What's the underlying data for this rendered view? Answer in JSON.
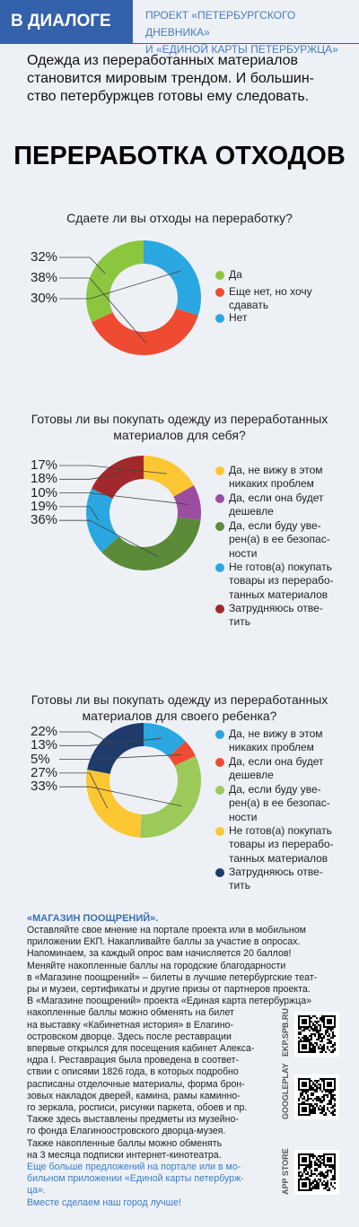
{
  "header": {
    "badge": "В ДИАЛОГЕ",
    "project": "ПРОЕКТ «ПЕТЕРБУРГСКОГО ДНЕВНИКА»\nИ «ЕДИНОЙ КАРТЫ ПЕТЕРБУРЖЦА»"
  },
  "intro": "Одежда из переработанных материалов\nстановится мировым трендом. И большин-\nство петербуржцев готовы ему следовать.",
  "title": "ПЕРЕРАБОТКА ОТХОДОВ",
  "chart_data": [
    {
      "type": "pie",
      "direction": "counterclockwise",
      "title": "Сдаете ли вы отходы на переработку?",
      "categories": [
        "Да",
        "Еще нет, но хочу\nсдавать",
        "Нет"
      ],
      "values": [
        32,
        38,
        30
      ],
      "value_labels": [
        "32%",
        "38%",
        "30%"
      ],
      "colors": [
        "#8cc63f",
        "#ef4b32",
        "#2aa7e0"
      ]
    },
    {
      "type": "pie",
      "direction": "clockwise",
      "title": "Готовы ли вы покупать одежду из переработанных\nматериалов для себя?",
      "categories": [
        "Да, не вижу в этом\nникаких проблем",
        "Да, если она будет\nдешевле",
        "Да, если буду уве-\nрен(а) в ее безопас-\nности",
        "Не готов(а) покупать\nтовары из перерабо-\nтанных материалов",
        "Затрудняюсь отве-\nтить"
      ],
      "values": [
        17,
        10,
        36,
        19,
        18
      ],
      "value_labels": [
        "17%",
        "10%",
        "36%",
        "19%",
        "18%"
      ],
      "colors": [
        "#fdc633",
        "#9b4d9f",
        "#5b8b39",
        "#2aa7e0",
        "#a3282b"
      ]
    },
    {
      "type": "pie",
      "direction": "clockwise",
      "title": "Готовы ли вы покупать одежду из переработанных\nматериалов для своего ребенка?",
      "categories": [
        "Да, не вижу в этом\nникаких проблем",
        "Да, если она будет\nдешевле",
        "Да, если буду уве-\nрен(а) в ее безопас-\nности",
        "Не готов(а) покупать\nтовары из перерабо-\nтанных материалов",
        "Затрудняюсь отве-\nтить"
      ],
      "values": [
        13,
        5,
        33,
        27,
        22
      ],
      "value_labels": [
        "13%",
        "5%",
        "33%",
        "27%",
        "22%"
      ],
      "colors": [
        "#2aa7e0",
        "#ef4b32",
        "#9dc85a",
        "#fdc633",
        "#1f3b6b"
      ]
    }
  ],
  "footer": {
    "heading": "«МАГАЗИН ПООЩРЕНИЙ».",
    "body": "Оставляйте свое мнение на портале проекта или в мобильном\nприложении ЕКП. Накапливайте баллы за участие в опросах.\nНапоминаем, за каждый опрос вам начисляется 20 баллов!\nМеняйте накопленные баллы на городские благодарности\nв «Магазине поощрений» – билеты в лучшие петербургские теат-\nры и музеи, сертификаты и другие призы от партнеров проекта.\nВ «Магазине поощрений» проекта «Единая карта петербуржца»\nнакопленные баллы можно обменять на билет\nна выставку «Кабинетная история» в Елагино-\nостровском дворце. Здесь после реставрации\nвпервые открылся для посещения кабинет Алекса-\nндра I. Реставрация была проведена в соответ-\nствии с описями 1826 года, в которых подробно\nрасписаны отделочные материалы, форма брон-\nзовых накладок дверей, камина, рамы каминно-\nго зеркала, росписи, рисунки паркета, обоев и пр.\nТакже здесь выставлены предметы из музейно-\nго фонда Елагиноостровского дворца-музея.\nТакже накопленные баллы можно обменять\nна 3 месяца подписки интернет-кинотеатра.",
    "more": "Еще больше предложений на портале или в мо-\nбильном приложении «Единой карты петербурж-\nца».",
    "closing": "Вместе сделаем наш город лучше!",
    "qr_labels": [
      "EKP.SPB.RU",
      "GOOGLEPLAY",
      "APP STORE"
    ]
  }
}
